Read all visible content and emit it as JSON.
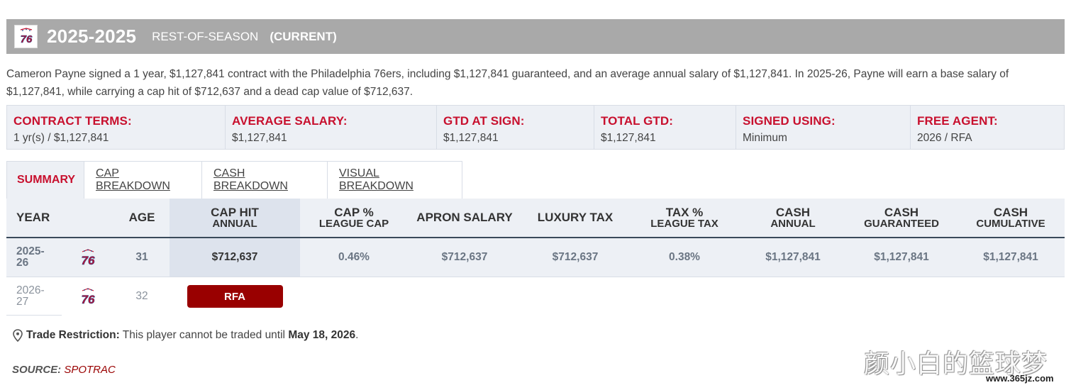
{
  "header": {
    "season": "2025-2025",
    "subtitle": "REST-OF-SEASON",
    "current": "(CURRENT)",
    "team_icon": "76ers-logo-icon"
  },
  "summary": "Cameron Payne signed a 1 year, $1,127,841 contract with the Philadelphia 76ers, including $1,127,841 guaranteed, and an average annual salary of $1,127,841. In 2025-26, Payne will earn a base salary of $1,127,841, while carrying a cap hit of $712,637 and a dead cap value of $712,637.",
  "terms": [
    {
      "label": "CONTRACT TERMS:",
      "value": "1 yr(s) / $1,127,841"
    },
    {
      "label": "AVERAGE SALARY:",
      "value": "$1,127,841"
    },
    {
      "label": "GTD AT SIGN:",
      "value": "$1,127,841"
    },
    {
      "label": "TOTAL GTD:",
      "value": "$1,127,841"
    },
    {
      "label": "SIGNED USING:",
      "value": "Minimum"
    },
    {
      "label": "FREE AGENT:",
      "value": "2026 / RFA"
    }
  ],
  "tabs": [
    {
      "label": "SUMMARY",
      "active": true
    },
    {
      "label": "CAP BREAKDOWN"
    },
    {
      "label": "CASH BREAKDOWN"
    },
    {
      "label": "VISUAL BREAKDOWN"
    }
  ],
  "columns": {
    "year": "YEAR",
    "age": "AGE",
    "cap_hit": {
      "l1": "CAP HIT",
      "l2": "ANNUAL"
    },
    "cap_pct": {
      "l1": "CAP %",
      "l2": "LEAGUE CAP"
    },
    "apron": "APRON SALARY",
    "luxury": "LUXURY TAX",
    "tax_pct": {
      "l1": "TAX %",
      "l2": "LEAGUE TAX"
    },
    "cash_annual": {
      "l1": "CASH",
      "l2": "ANNUAL"
    },
    "cash_gtd": {
      "l1": "CASH",
      "l2": "GUARANTEED"
    },
    "cash_cum": {
      "l1": "CASH",
      "l2": "CUMULATIVE"
    }
  },
  "rows": [
    {
      "year_a": "2025-",
      "year_b": "26",
      "age": "31",
      "cap_hit": "$712,637",
      "cap_pct": "0.46%",
      "apron": "$712,637",
      "luxury": "$712,637",
      "tax_pct": "0.38%",
      "cash_annual": "$1,127,841",
      "cash_gtd": "$1,127,841",
      "cash_cum": "$1,127,841"
    },
    {
      "year_a": "2026-",
      "year_b": "27",
      "age": "32",
      "badge": "RFA"
    }
  ],
  "trade": {
    "label": "Trade Restriction:",
    "text": " This player cannot be traded until ",
    "date": "May 18, 2026",
    "end": "."
  },
  "source": {
    "label": "SOURCE:",
    "link": "SPOTRAC"
  },
  "watermark": {
    "cn": "颜小白的篮球梦",
    "url": "www.365jz.com"
  },
  "colors": {
    "accent": "#c8102e",
    "badge": "#990000",
    "header_bar": "#a9a9a9",
    "table_bg": "#edf0f5"
  }
}
